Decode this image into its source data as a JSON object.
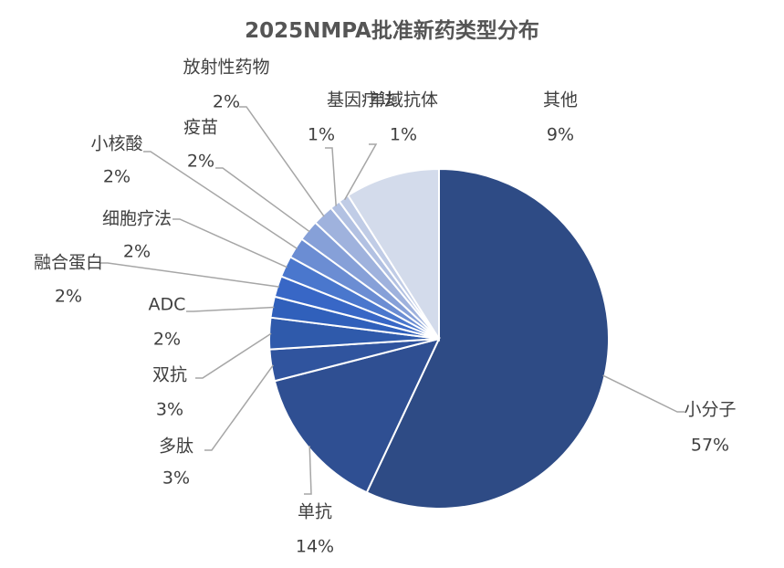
{
  "chart_data": {
    "type": "pie",
    "title": "2025NMPA批准新药类型分布",
    "slices": [
      {
        "label": "小分子",
        "pct_label": "57%",
        "value": 57,
        "color": "#2e4b85"
      },
      {
        "label": "单抗",
        "pct_label": "14%",
        "value": 14,
        "color": "#2f4f92"
      },
      {
        "label": "多肽",
        "pct_label": "3%",
        "value": 3,
        "color": "#30549e"
      },
      {
        "label": "双抗",
        "pct_label": "3%",
        "value": 3,
        "color": "#2f5aab"
      },
      {
        "label": "ADC",
        "pct_label": "2%",
        "value": 2,
        "color": "#3060bb"
      },
      {
        "label": "融合蛋白",
        "pct_label": "2%",
        "value": 2,
        "color": "#3867c6"
      },
      {
        "label": "细胞疗法",
        "pct_label": "2%",
        "value": 2,
        "color": "#4a77cd"
      },
      {
        "label": "小核酸",
        "pct_label": "2%",
        "value": 2,
        "color": "#6b8dd3"
      },
      {
        "label": "疫苗",
        "pct_label": "2%",
        "value": 2,
        "color": "#86a0d8"
      },
      {
        "label": "放射性药物",
        "pct_label": "2%",
        "value": 2,
        "color": "#9fb2dd"
      },
      {
        "label": "基因疗法",
        "pct_label": "1%",
        "value": 1,
        "color": "#b2c1e2"
      },
      {
        "label": "单域抗体",
        "pct_label": "1%",
        "value": 1,
        "color": "#c0cce6"
      },
      {
        "label": "其他",
        "pct_label": "9%",
        "value": 9,
        "color": "#d3dbeb"
      }
    ]
  }
}
